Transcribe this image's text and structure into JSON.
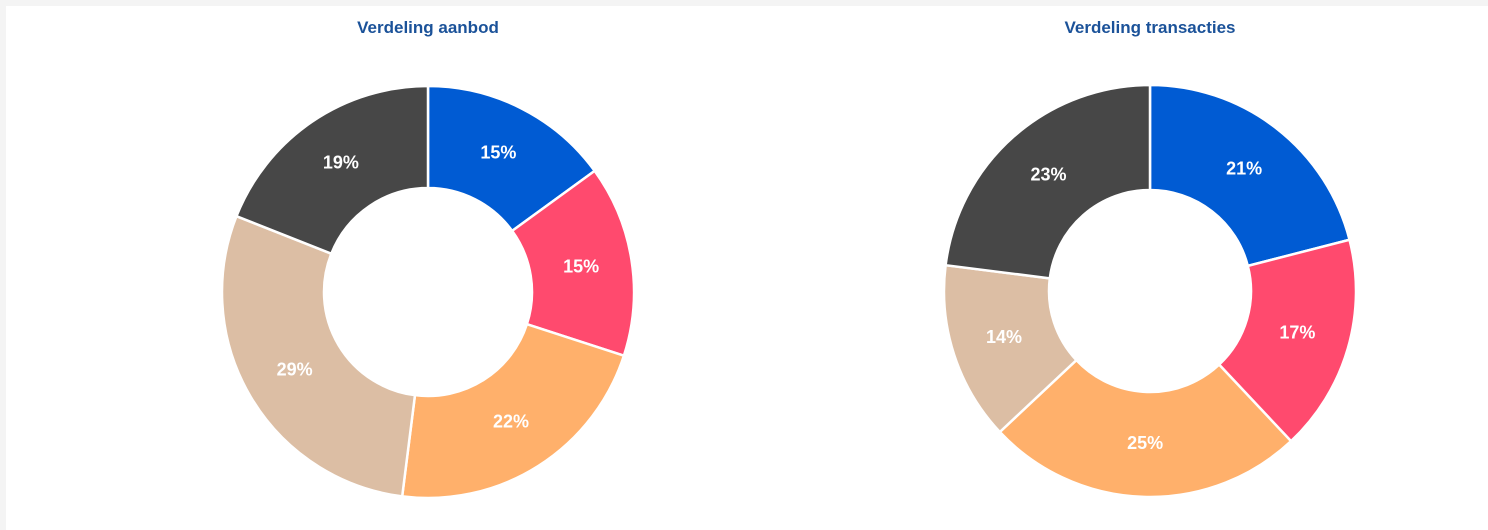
{
  "chart_data": [
    {
      "type": "donut",
      "title": "Verdeling aanbod",
      "values": [
        15,
        15,
        22,
        29,
        19
      ],
      "value_labels": [
        "15%",
        "15%",
        "22%",
        "29%",
        "19%"
      ],
      "colors": [
        "#005bd3",
        "#ff4a6e",
        "#ffb06b",
        "#dcbea4",
        "#474747"
      ]
    },
    {
      "type": "donut",
      "title": "Verdeling transacties",
      "values": [
        21,
        17,
        25,
        14,
        23
      ],
      "value_labels": [
        "21%",
        "17%",
        "25%",
        "14%",
        "23%"
      ],
      "colors": [
        "#005bd3",
        "#ff4a6e",
        "#ffb06b",
        "#dcbea4",
        "#474747"
      ]
    }
  ]
}
